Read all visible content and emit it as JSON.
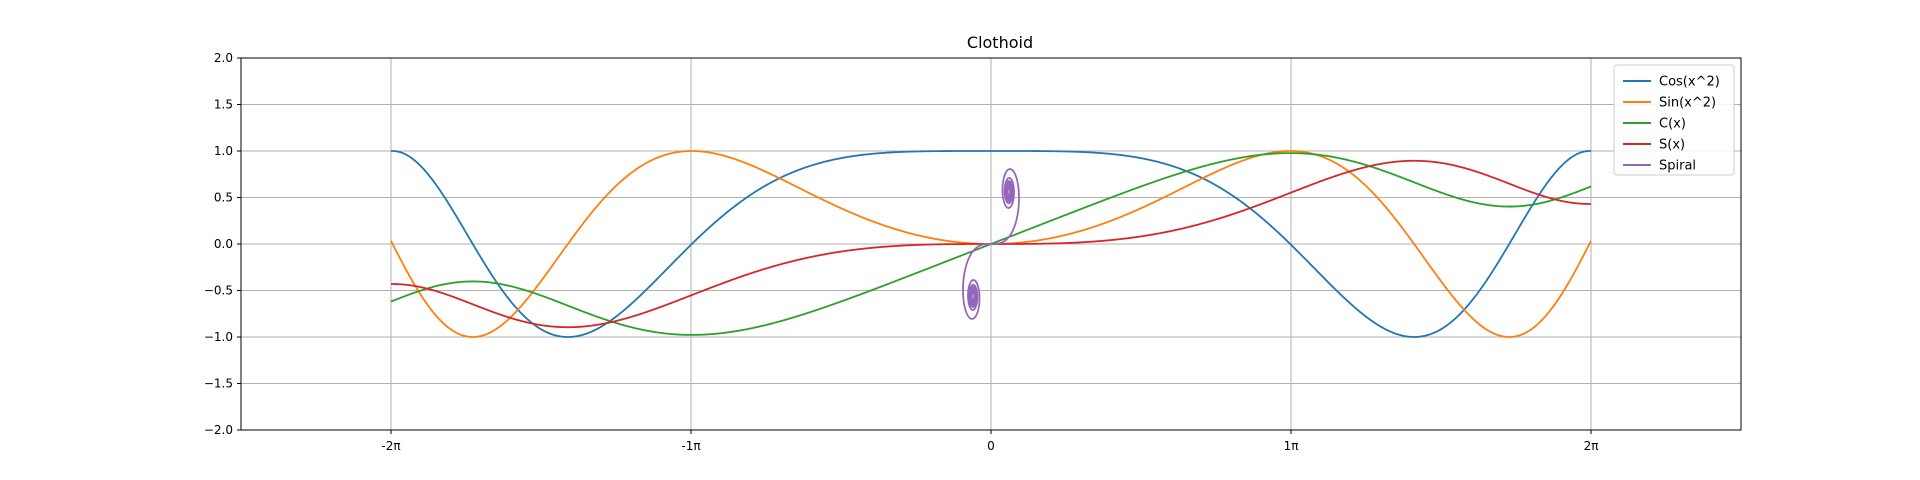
{
  "chart_data": {
    "type": "line",
    "title": "Clothoid",
    "xlabel": "",
    "ylabel": "",
    "xlim": [
      -7.854,
      7.854
    ],
    "ylim": [
      -2.0,
      2.0
    ],
    "grid": true,
    "legend_placement": "top-right",
    "x_ticks": [
      {
        "value": -6.2832,
        "label": "-2π"
      },
      {
        "value": -3.1416,
        "label": "-1π"
      },
      {
        "value": 0,
        "label": "0"
      },
      {
        "value": 3.1416,
        "label": "1π"
      },
      {
        "value": 6.2832,
        "label": "2π"
      }
    ],
    "y_ticks": [
      {
        "value": 2.0,
        "label": "2.0"
      },
      {
        "value": 1.5,
        "label": "1.5"
      },
      {
        "value": 1.0,
        "label": "1.0"
      },
      {
        "value": 0.5,
        "label": "0.5"
      },
      {
        "value": 0.0,
        "label": "0.0"
      },
      {
        "value": -0.5,
        "label": "−0.5"
      },
      {
        "value": -1.0,
        "label": "−1.0"
      },
      {
        "value": -1.5,
        "label": "−1.5"
      },
      {
        "value": -2.0,
        "label": "−2.0"
      }
    ],
    "series": [
      {
        "name": "Cos(x^2)",
        "color": "#1f77b4",
        "function": "cos(x^2) scaled",
        "x_range": [
          -6.2832,
          6.2832
        ]
      },
      {
        "name": "Sin(x^2)",
        "color": "#ff7f0e",
        "function": "sin(x^2) scaled",
        "x_range": [
          -6.2832,
          6.2832
        ]
      },
      {
        "name": "C(x)",
        "color": "#2ca02c",
        "function": "fresnel C scaled",
        "x_range": [
          -6.2832,
          6.2832
        ]
      },
      {
        "name": "S(x)",
        "color": "#d62728",
        "function": "fresnel S scaled",
        "x_range": [
          -6.2832,
          6.2832
        ]
      },
      {
        "name": "Spiral",
        "color": "#9467bd",
        "function": "parametric (C(t), S(t))",
        "x_range": [
          -0.25,
          0.25
        ]
      }
    ]
  }
}
